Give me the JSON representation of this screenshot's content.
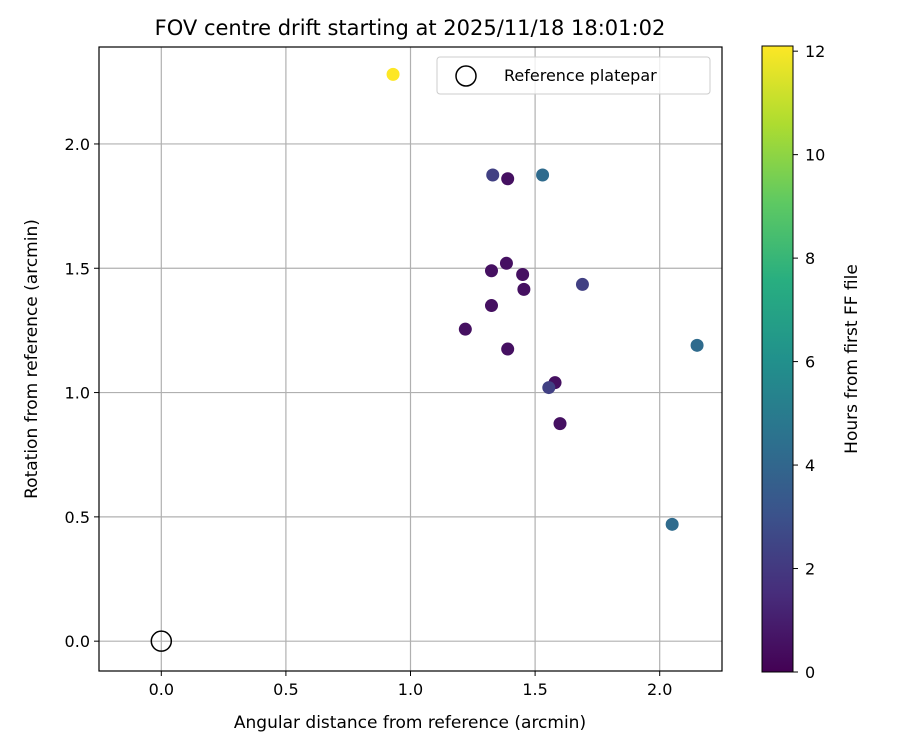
{
  "chart_data": {
    "type": "scatter",
    "title": "FOV centre drift starting at 2025/11/18 18:01:02",
    "xlabel": "Angular distance from reference (arcmin)",
    "ylabel": "Rotation from reference (arcmin)",
    "xlim": [
      -0.25,
      2.25
    ],
    "ylim": [
      -0.12,
      2.39
    ],
    "xticks": [
      0.0,
      0.5,
      1.0,
      1.5,
      2.0
    ],
    "xtick_labels": [
      "0.0",
      "0.5",
      "1.0",
      "1.5",
      "2.0"
    ],
    "yticks": [
      0.0,
      0.5,
      1.0,
      1.5,
      2.0
    ],
    "ytick_labels": [
      "0.0",
      "0.5",
      "1.0",
      "1.5",
      "2.0"
    ],
    "grid": true,
    "legend": {
      "location": "top-right",
      "entries": [
        "Reference platepar"
      ]
    },
    "reference_point": {
      "x": 0.0,
      "y": 0.0,
      "label": "Reference platepar"
    },
    "colorbar": {
      "label": "Hours from first FF file",
      "colormap": "viridis",
      "range": [
        0,
        12.1
      ],
      "ticks": [
        0,
        2,
        4,
        6,
        8,
        10,
        12
      ],
      "tick_labels": [
        "0",
        "2",
        "4",
        "6",
        "8",
        "10",
        "12"
      ]
    },
    "points": [
      {
        "x": 0.93,
        "y": 2.28,
        "hours": 12.1
      },
      {
        "x": 1.33,
        "y": 1.875,
        "hours": 2.3
      },
      {
        "x": 1.39,
        "y": 1.86,
        "hours": 0.5
      },
      {
        "x": 1.53,
        "y": 1.875,
        "hours": 4.2
      },
      {
        "x": 1.325,
        "y": 1.49,
        "hours": 0.5
      },
      {
        "x": 1.385,
        "y": 1.52,
        "hours": 0.5
      },
      {
        "x": 1.45,
        "y": 1.475,
        "hours": 0.5
      },
      {
        "x": 1.455,
        "y": 1.415,
        "hours": 0.5
      },
      {
        "x": 1.325,
        "y": 1.35,
        "hours": 0.5
      },
      {
        "x": 1.22,
        "y": 1.255,
        "hours": 0.5
      },
      {
        "x": 1.69,
        "y": 1.435,
        "hours": 2.3
      },
      {
        "x": 1.39,
        "y": 1.175,
        "hours": 0.5
      },
      {
        "x": 1.58,
        "y": 1.04,
        "hours": 0.5
      },
      {
        "x": 1.555,
        "y": 1.02,
        "hours": 2.3
      },
      {
        "x": 1.6,
        "y": 0.875,
        "hours": 0.5
      },
      {
        "x": 2.15,
        "y": 1.19,
        "hours": 4.2
      },
      {
        "x": 2.05,
        "y": 0.47,
        "hours": 4.2
      }
    ]
  }
}
